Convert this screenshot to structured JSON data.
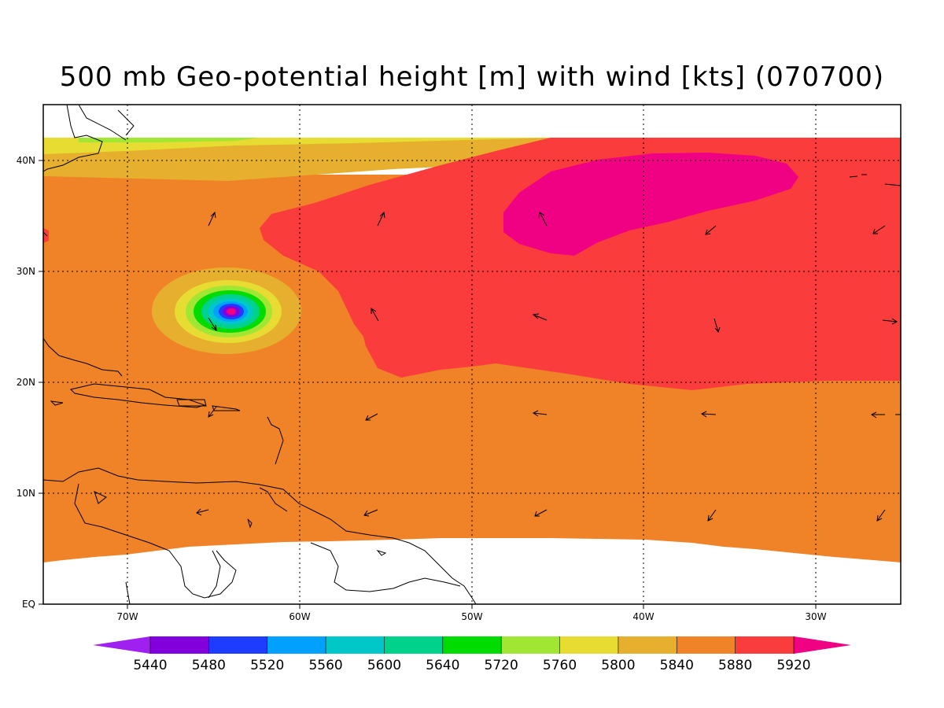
{
  "title": "500 mb Geo-potential height [m] with wind [kts] (070700)",
  "map": {
    "lon_labels": [
      "70W",
      "60W",
      "50W",
      "40W",
      "30W"
    ],
    "lat_labels": [
      "40N",
      "30N",
      "20N",
      "10N",
      "EQ"
    ]
  },
  "colorbar": {
    "labels": [
      "5440",
      "5480",
      "5520",
      "5560",
      "5600",
      "5640",
      "5720",
      "5760",
      "5800",
      "5840",
      "5880",
      "5920"
    ],
    "colors": [
      "#a020f0",
      "#8200dc",
      "#1e3cff",
      "#00a0ff",
      "#00c8c8",
      "#00d28c",
      "#00dc00",
      "#a0e632",
      "#e6dc32",
      "#e6af2d",
      "#f08228",
      "#fa3c3c",
      "#f00082"
    ]
  },
  "colors": {
    "frame": "#000000",
    "coastline": "#000000"
  },
  "legend": "colorbar bottom"
}
